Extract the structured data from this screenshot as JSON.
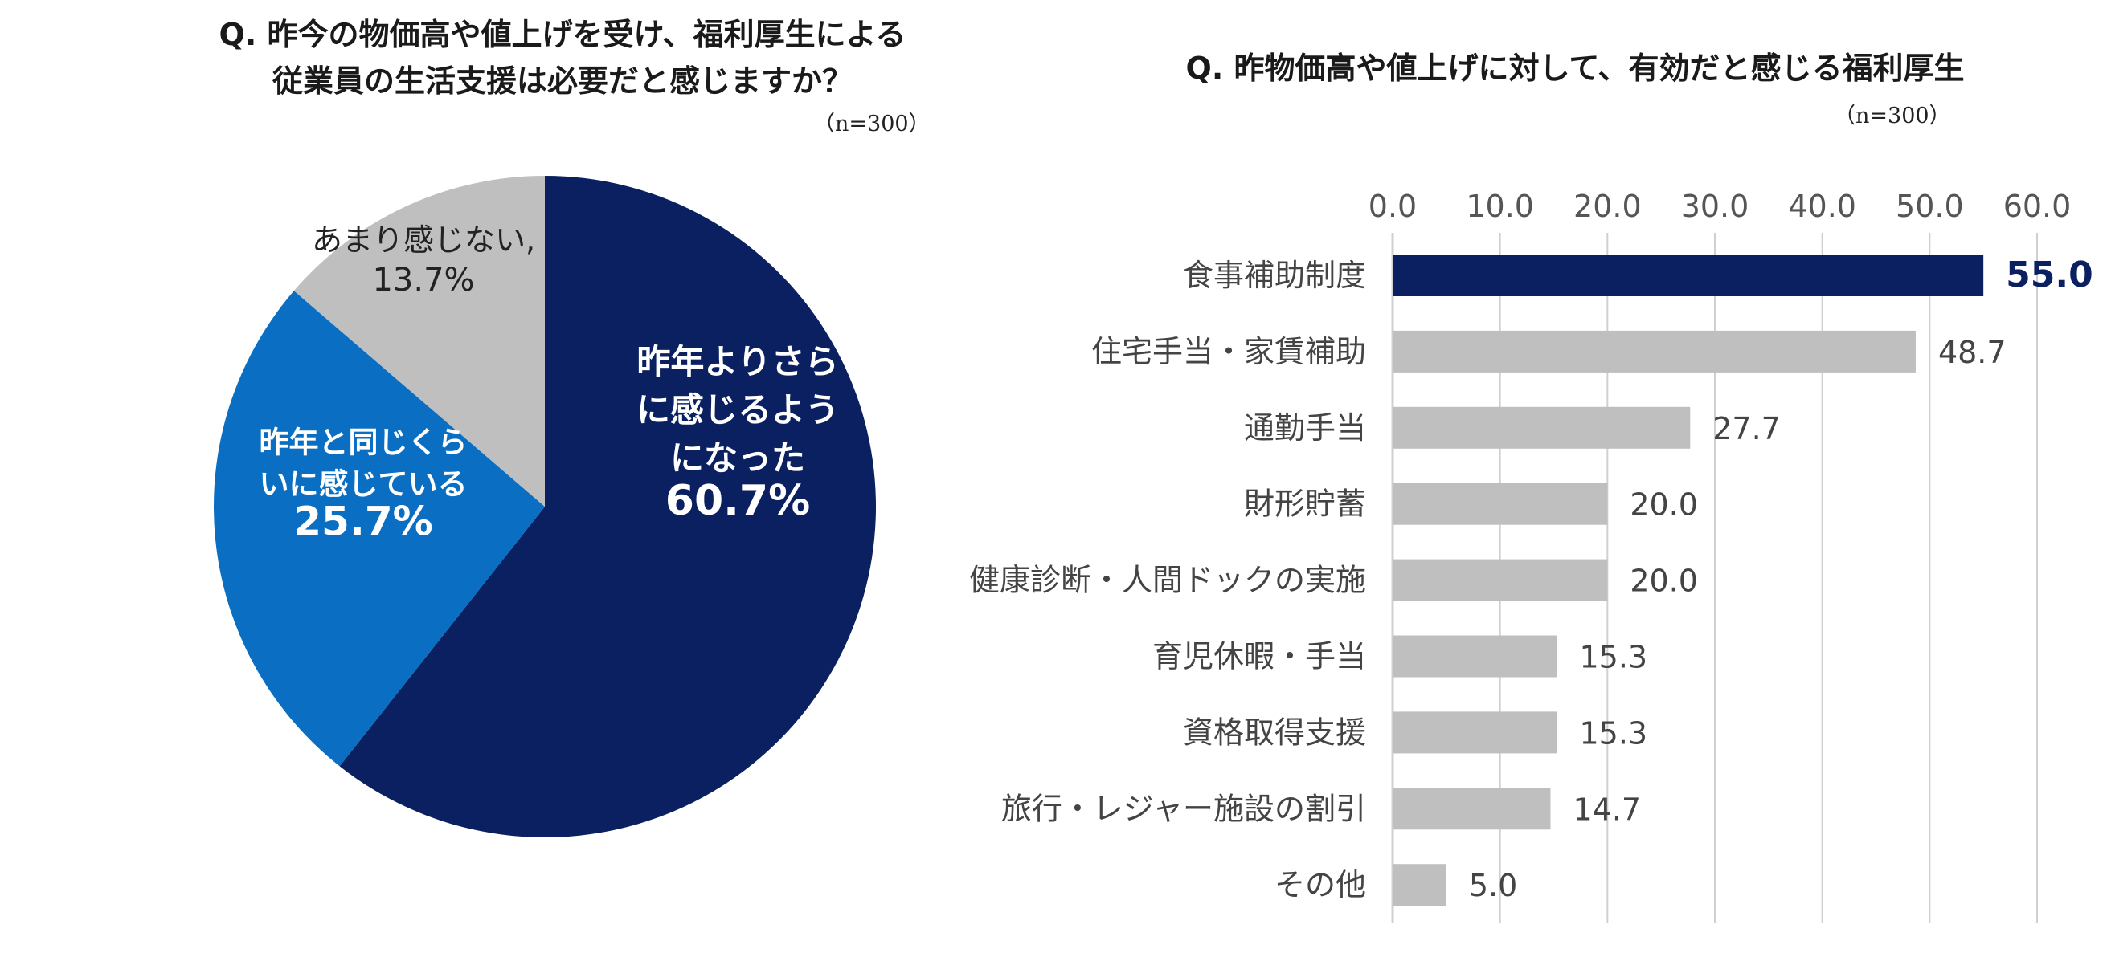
{
  "pie_title": {
    "line1": "Q. 昨今の物価高や値上げを受け、福利厚生による",
    "line2": "従業員の生活支援は必要だと感じますか？"
  },
  "pie_sample": "（n=300）",
  "bar_title": "Q. 昨物価高や値上げに対して、有効だと感じる福利厚生",
  "bar_sample": "（n=300）",
  "colors": {
    "dark_navy": "#0b2060",
    "mid_blue": "#0a6fc2",
    "gray": "#bfbfbf",
    "highlight_label": "#0b2060",
    "grid": "#d0d0d0"
  },
  "chart_data": [
    {
      "type": "pie",
      "title": "Q. 昨今の物価高や値上げを受け、福利厚生による従業員の生活支援は必要だと感じますか？",
      "slices": [
        {
          "label_lines": [
            "昨年よりさら",
            "に感じるよう",
            "になった"
          ],
          "value": 60.7,
          "value_label": "60.7%",
          "color": "#0b2060",
          "text_color": "#ffffff"
        },
        {
          "label_lines": [
            "昨年と同じくら",
            "いに感じている"
          ],
          "value": 25.7,
          "value_label": "25.7%",
          "color": "#0a6fc2",
          "text_color": "#ffffff"
        },
        {
          "label_lines": [
            "あまり感じない,"
          ],
          "value": 13.7,
          "value_label": "13.7%",
          "color": "#bfbfbf",
          "text_color": "#222222"
        }
      ]
    },
    {
      "type": "bar",
      "orientation": "horizontal",
      "title": "Q. 昨物価高や値上げに対して、有効だと感じる福利厚生",
      "xlim": [
        0,
        60
      ],
      "ticks": [
        0,
        10,
        20,
        30,
        40,
        50,
        60
      ],
      "tick_labels": [
        "0.0",
        "10.0",
        "20.0",
        "30.0",
        "40.0",
        "50.0",
        "60.0"
      ],
      "grid": true,
      "categories": [
        "食事補助制度",
        "住宅手当・家賃補助",
        "通勤手当",
        "財形貯蓄",
        "健康診断・人間ドックの実施",
        "育児休暇・手当",
        "資格取得支援",
        "旅行・レジャー施設の割引",
        "その他"
      ],
      "values": [
        55.0,
        48.7,
        27.7,
        20.0,
        20.0,
        15.3,
        15.3,
        14.7,
        5.0
      ],
      "value_labels": [
        "55.0",
        "48.7",
        "27.7",
        "20.0",
        "20.0",
        "15.3",
        "15.3",
        "14.7",
        "5.0"
      ],
      "highlight_index": 0
    }
  ]
}
